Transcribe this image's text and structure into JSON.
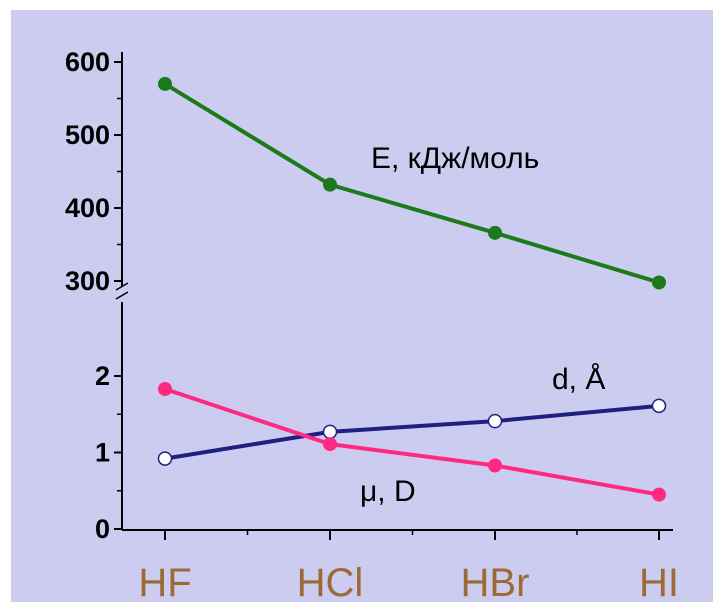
{
  "colors": {
    "background": "#ccccf0",
    "axis": "#000000",
    "category_text": "#9c6a34",
    "energy_series": "#1b7a1b",
    "bond_length_series": "#1f1f80",
    "dipole_series": "#ff2a7f"
  },
  "chart_data": {
    "type": "line",
    "categories": [
      "HF",
      "HCl",
      "HBr",
      "HI"
    ],
    "panels": [
      {
        "yticks": [
          "300",
          "400",
          "500",
          "600"
        ],
        "ylim": [
          290,
          615
        ],
        "series": [
          {
            "name": "E, кДж/моль",
            "values": [
              570,
              432,
              366,
              298
            ]
          }
        ]
      },
      {
        "yticks": [
          "0",
          "1",
          "2"
        ],
        "ylim": [
          0,
          2.5
        ],
        "series": [
          {
            "name": "d, Å",
            "values": [
              0.92,
              1.27,
              1.41,
              1.61
            ]
          },
          {
            "name": "μ, D",
            "values": [
              1.83,
              1.11,
              0.83,
              0.45
            ]
          }
        ]
      }
    ],
    "axis_break": true,
    "grid": false
  }
}
